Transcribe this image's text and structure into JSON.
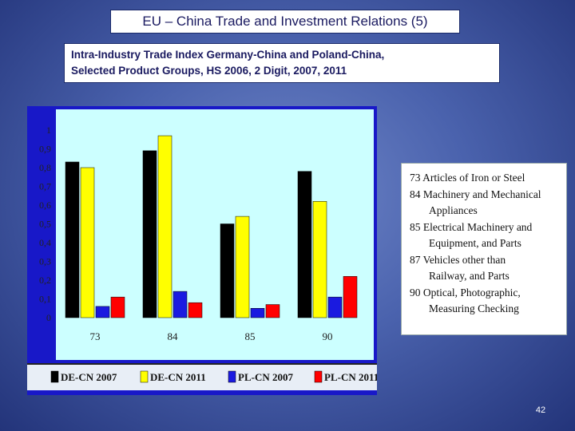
{
  "title": "EU – China Trade and Investment Relations (5)",
  "subtitle_lines": [
    "Intra-Industry Trade Index Germany-China and Poland-China,",
    "Selected Product Groups, HS 2006, 2 Digit, 2007, 2011"
  ],
  "colors": {
    "plot_bg": "#ccffff",
    "panel_bg": "#1818c8",
    "series": [
      "#000000",
      "#ffff00",
      "#1a1ae0",
      "#ff0000"
    ]
  },
  "chart_data": {
    "type": "bar",
    "categories": [
      "73",
      "84",
      "85",
      "90"
    ],
    "series": [
      {
        "name": "DE-CN 2007",
        "values": [
          0.83,
          0.89,
          0.5,
          0.78
        ]
      },
      {
        "name": "DE-CN 2011",
        "values": [
          0.8,
          0.97,
          0.54,
          0.62
        ]
      },
      {
        "name": "PL-CN 2007",
        "values": [
          0.06,
          0.14,
          0.05,
          0.11
        ]
      },
      {
        "name": "PL-CN 2011",
        "values": [
          0.11,
          0.08,
          0.07,
          0.22
        ]
      }
    ],
    "y_ticks": [
      "0",
      "0,1",
      "0,2",
      "0,3",
      "0,4",
      "0,5",
      "0,6",
      "0,7",
      "0,8",
      "0,9",
      "1"
    ],
    "ylim": [
      0,
      1
    ],
    "grid": false,
    "legend_position": "bottom"
  },
  "category_legend": [
    {
      "text": "73 Articles of Iron or Steel",
      "indent": false
    },
    {
      "text": "84 Machinery and Mechanical",
      "indent": false
    },
    {
      "text": "Appliances",
      "indent": true
    },
    {
      "text": "85 Electrical Machinery and",
      "indent": false
    },
    {
      "text": "Equipment, and Parts",
      "indent": true
    },
    {
      "text": "87 Vehicles other than",
      "indent": false
    },
    {
      "text": "Railway, and Parts",
      "indent": true
    },
    {
      "text": "90 Optical, Photographic,",
      "indent": false
    },
    {
      "text": "Measuring Checking",
      "indent": true
    }
  ],
  "page_number": "42"
}
